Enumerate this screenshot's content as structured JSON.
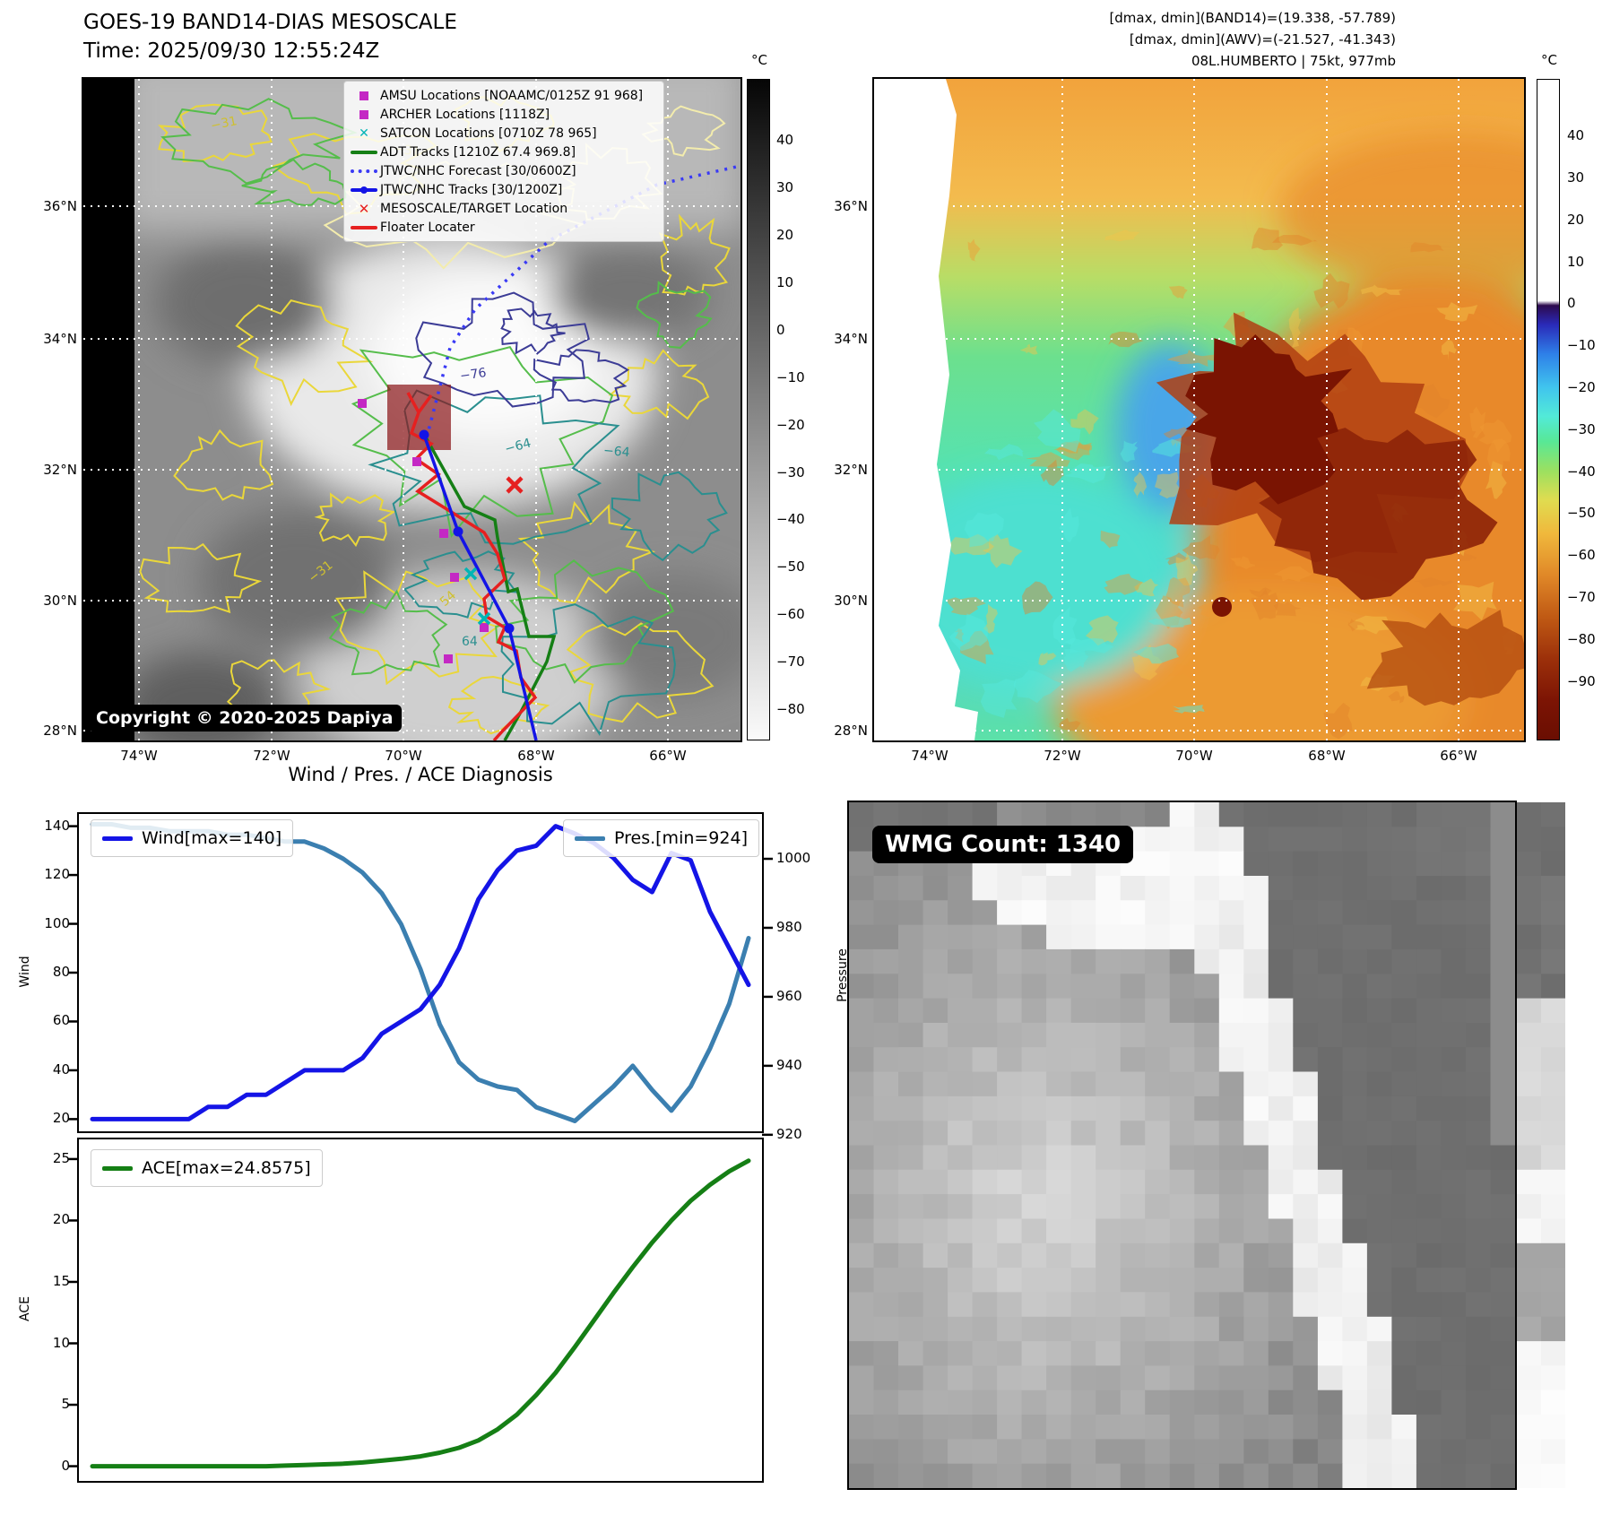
{
  "left_map": {
    "title": "GOES-19 BAND14-DIAS MESOSCALE",
    "subtitle": "Time: 2025/09/30 12:55:24Z",
    "copyright": "Copyright © 2020-2025 Dapiya",
    "legend": [
      {
        "marker": "magenta-square",
        "label": "AMSU Locations [NOAAMC/0125Z 91 968]"
      },
      {
        "marker": "magenta-square",
        "label": "ARCHER Locations [1118Z]"
      },
      {
        "marker": "cyan-x",
        "label": "SATCON Locations [0710Z 78 965]"
      },
      {
        "marker": "green-line",
        "label": "ADT Tracks [1210Z 67.4 969.8]"
      },
      {
        "marker": "blue-dotted-line",
        "label": "JTWC/NHC Forecast [30/0600Z]"
      },
      {
        "marker": "blue-line-dot",
        "label": "JTWC/NHC Tracks [30/1200Z]"
      },
      {
        "marker": "red-x",
        "label": "MESOSCALE/TARGET Location"
      },
      {
        "marker": "red-line",
        "label": "Floater Locater"
      }
    ],
    "lat_ticks": [
      "36°N",
      "34°N",
      "32°N",
      "30°N",
      "28°N"
    ],
    "lon_ticks": [
      "74°W",
      "72°W",
      "70°W",
      "68°W",
      "66°W"
    ],
    "colorbar": {
      "unit": "°C",
      "ticks": [
        40,
        30,
        20,
        10,
        0,
        -10,
        -20,
        -30,
        -40,
        -50,
        -60,
        -70,
        -80
      ]
    },
    "contour_labels": [
      "-31",
      "-31",
      "-31",
      "-76",
      "-64",
      "-64",
      "54",
      "64"
    ]
  },
  "right_map": {
    "header": [
      "[dmax, dmin](BAND14)=(19.338, -57.789)",
      "[dmax, dmin](AWV)=(-21.527, -41.343)",
      "08L.HUMBERTO | 75kt, 977mb"
    ],
    "lat_ticks": [
      "36°N",
      "34°N",
      "32°N",
      "30°N",
      "28°N"
    ],
    "lon_ticks": [
      "74°W",
      "72°W",
      "70°W",
      "68°W",
      "66°W"
    ],
    "colorbar": {
      "unit": "°C",
      "ticks": [
        40,
        30,
        20,
        10,
        0,
        -10,
        -20,
        -30,
        -40,
        -50,
        -60,
        -70,
        -80,
        -90
      ]
    }
  },
  "charts": {
    "title": "Wind / Pres. / ACE Diagnosis"
  },
  "chart_data": [
    {
      "type": "line",
      "title": "Wind / Pres. / ACE Diagnosis",
      "x_tick_labels_shown": false,
      "grid": false,
      "series": [
        {
          "name": "Wind[max=140]",
          "axis_label": "Wind",
          "axis_side": "left",
          "color": "#1414e6",
          "ylim": [
            15,
            145
          ],
          "yticks": [
            140,
            120,
            100,
            80,
            60,
            40,
            20
          ],
          "values": [
            20,
            20,
            20,
            20,
            20,
            20,
            25,
            25,
            30,
            30,
            35,
            40,
            40,
            40,
            45,
            55,
            60,
            65,
            75,
            90,
            110,
            122,
            130,
            132,
            140,
            137,
            133,
            127,
            118,
            113,
            129,
            126,
            105,
            90,
            75
          ]
        },
        {
          "name": "Pres.[min=924]",
          "axis_label": "Pressure",
          "axis_side": "right",
          "color": "#3b7fb0",
          "ylim": [
            921,
            1013
          ],
          "yticks": [
            1000,
            980,
            960,
            940,
            920
          ],
          "values": [
            1010,
            1010,
            1009,
            1009,
            1008,
            1008,
            1008,
            1007,
            1007,
            1006,
            1005,
            1005,
            1003,
            1000,
            996,
            990,
            981,
            968,
            952,
            941,
            936,
            934,
            933,
            928,
            926,
            924,
            929,
            934,
            940,
            933,
            927,
            934,
            945,
            958,
            977
          ]
        }
      ],
      "legend_positions": [
        "upper left",
        "upper right"
      ]
    },
    {
      "type": "line",
      "x_tick_labels_shown": false,
      "grid": false,
      "series": [
        {
          "name": "ACE[max=24.8575]",
          "axis_label": "ACE",
          "axis_side": "left",
          "color": "#157f15",
          "ylim": [
            -1.2,
            26.6
          ],
          "yticks": [
            25,
            20,
            15,
            10,
            5,
            0
          ],
          "values": [
            0,
            0,
            0,
            0,
            0,
            0,
            0,
            0,
            0,
            0,
            0.05,
            0.1,
            0.15,
            0.2,
            0.3,
            0.45,
            0.6,
            0.8,
            1.1,
            1.5,
            2.1,
            3.0,
            4.2,
            5.8,
            7.6,
            9.7,
            11.9,
            14.1,
            16.2,
            18.2,
            20.0,
            21.6,
            22.9,
            24.0,
            24.86
          ]
        }
      ],
      "legend_position": "upper left"
    }
  ],
  "bottom_right": {
    "badge": "WMG Count: 1340"
  }
}
